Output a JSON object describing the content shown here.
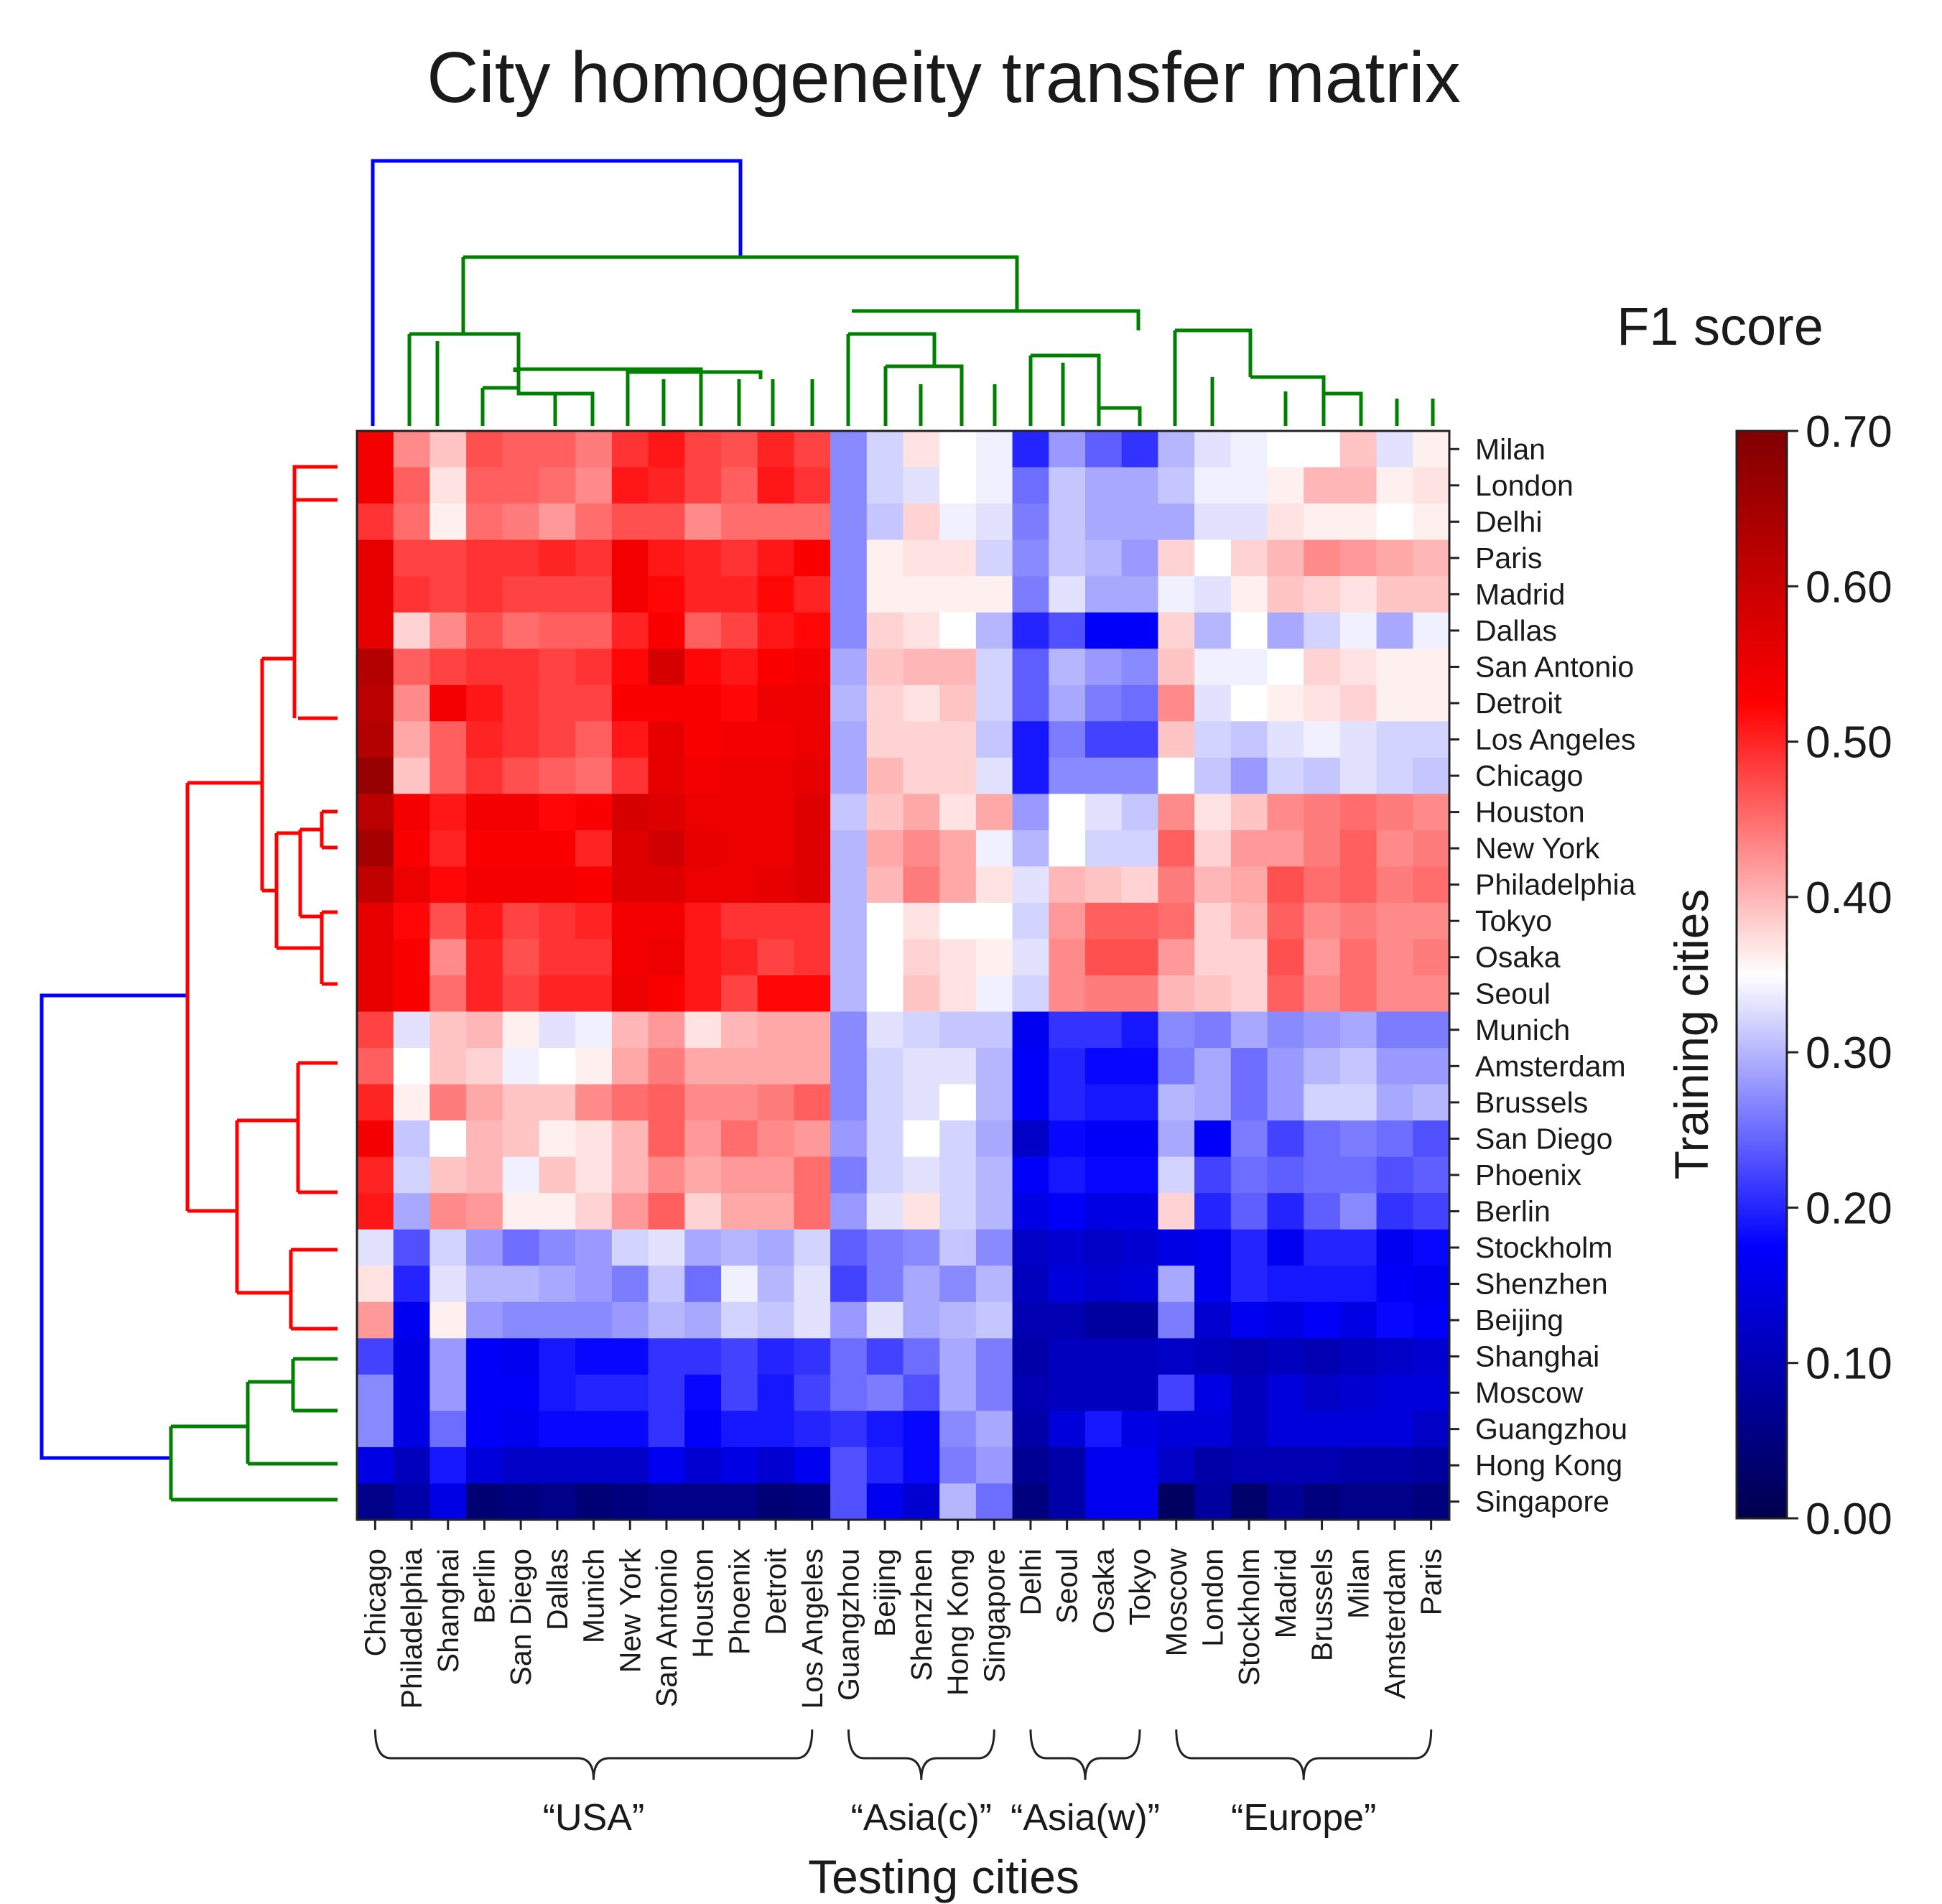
{
  "chart_data": {
    "type": "heatmap",
    "title": "City homogeneity transfer matrix",
    "xlabel": "Testing cities",
    "ylabel": "Training cities",
    "colorbar": {
      "title": "F1 score",
      "range": [
        0,
        0.7
      ],
      "ticks": [
        "0.00",
        "0.10",
        "0.20",
        "0.30",
        "0.40",
        "0.50",
        "0.60",
        "0.70"
      ],
      "colormap": "seismic"
    },
    "columns": [
      "Chicago",
      "Philadelphia",
      "Shanghai",
      "Berlin",
      "San Diego",
      "Dallas",
      "Munich",
      "New York",
      "San Antonio",
      "Houston",
      "Phoenix",
      "Detroit",
      "Los Angeles",
      "Guangzhou",
      "Beijing",
      "Shenzhen",
      "Hong Kong",
      "Singapore",
      "Delhi",
      "Seoul",
      "Osaka",
      "Tokyo",
      "Moscow",
      "London",
      "Stockholm",
      "Madrid",
      "Brussels",
      "Milan",
      "Amsterdam",
      "Paris"
    ],
    "rows": [
      "Milan",
      "London",
      "Delhi",
      "Paris",
      "Madrid",
      "Dallas",
      "San Antonio",
      "Detroit",
      "Los Angeles",
      "Chicago",
      "Houston",
      "New York",
      "Philadelphia",
      "Tokyo",
      "Osaka",
      "Seoul",
      "Munich",
      "Amsterdam",
      "Brussels",
      "San Diego",
      "Phoenix",
      "Berlin",
      "Stockholm",
      "Shenzhen",
      "Beijing",
      "Shanghai",
      "Moscow",
      "Guangzhou",
      "Hong Kong",
      "Singapore"
    ],
    "column_groups": [
      {
        "label": "“USA”",
        "from": 0,
        "to": 12
      },
      {
        "label": "“Asia(c)”",
        "from": 13,
        "to": 17
      },
      {
        "label": "“Asia(w)”",
        "from": 18,
        "to": 21
      },
      {
        "label": "“Europe”",
        "from": 22,
        "to": 29
      }
    ],
    "values": [
      [
        0.54,
        0.43,
        0.39,
        0.47,
        0.46,
        0.46,
        0.44,
        0.49,
        0.51,
        0.48,
        0.47,
        0.5,
        0.48,
        0.27,
        0.32,
        0.37,
        0.35,
        0.34,
        0.2,
        0.28,
        0.24,
        0.21,
        0.3,
        0.33,
        0.34,
        0.35,
        0.35,
        0.39,
        0.33,
        0.36
      ],
      [
        0.54,
        0.46,
        0.37,
        0.46,
        0.46,
        0.45,
        0.43,
        0.51,
        0.5,
        0.48,
        0.46,
        0.51,
        0.49,
        0.27,
        0.32,
        0.33,
        0.35,
        0.34,
        0.25,
        0.31,
        0.29,
        0.29,
        0.31,
        0.34,
        0.34,
        0.36,
        0.4,
        0.4,
        0.36,
        0.37
      ],
      [
        0.49,
        0.45,
        0.36,
        0.45,
        0.44,
        0.42,
        0.45,
        0.47,
        0.47,
        0.43,
        0.45,
        0.45,
        0.45,
        0.27,
        0.31,
        0.38,
        0.34,
        0.33,
        0.26,
        0.31,
        0.29,
        0.29,
        0.29,
        0.33,
        0.33,
        0.37,
        0.36,
        0.36,
        0.35,
        0.36
      ],
      [
        0.56,
        0.48,
        0.48,
        0.49,
        0.49,
        0.5,
        0.49,
        0.54,
        0.51,
        0.5,
        0.49,
        0.51,
        0.53,
        0.27,
        0.36,
        0.37,
        0.37,
        0.32,
        0.27,
        0.31,
        0.3,
        0.28,
        0.38,
        0.35,
        0.38,
        0.4,
        0.43,
        0.42,
        0.41,
        0.4
      ],
      [
        0.56,
        0.49,
        0.48,
        0.49,
        0.48,
        0.48,
        0.48,
        0.54,
        0.52,
        0.5,
        0.5,
        0.52,
        0.5,
        0.27,
        0.36,
        0.36,
        0.36,
        0.36,
        0.26,
        0.33,
        0.29,
        0.29,
        0.34,
        0.33,
        0.36,
        0.39,
        0.38,
        0.37,
        0.39,
        0.39
      ],
      [
        0.56,
        0.38,
        0.43,
        0.47,
        0.45,
        0.46,
        0.46,
        0.5,
        0.53,
        0.46,
        0.48,
        0.51,
        0.52,
        0.27,
        0.38,
        0.37,
        0.35,
        0.3,
        0.2,
        0.23,
        0.17,
        0.17,
        0.38,
        0.3,
        0.35,
        0.29,
        0.32,
        0.34,
        0.29,
        0.34
      ],
      [
        0.63,
        0.46,
        0.48,
        0.49,
        0.49,
        0.48,
        0.49,
        0.52,
        0.58,
        0.52,
        0.51,
        0.53,
        0.54,
        0.29,
        0.39,
        0.4,
        0.4,
        0.32,
        0.24,
        0.3,
        0.28,
        0.27,
        0.39,
        0.34,
        0.34,
        0.35,
        0.38,
        0.37,
        0.36,
        0.36
      ],
      [
        0.62,
        0.43,
        0.54,
        0.51,
        0.49,
        0.48,
        0.48,
        0.53,
        0.53,
        0.53,
        0.52,
        0.55,
        0.55,
        0.3,
        0.38,
        0.37,
        0.39,
        0.32,
        0.24,
        0.29,
        0.26,
        0.25,
        0.43,
        0.33,
        0.35,
        0.36,
        0.37,
        0.38,
        0.36,
        0.36
      ],
      [
        0.63,
        0.41,
        0.46,
        0.5,
        0.49,
        0.48,
        0.46,
        0.51,
        0.56,
        0.53,
        0.54,
        0.54,
        0.55,
        0.29,
        0.38,
        0.38,
        0.38,
        0.31,
        0.19,
        0.26,
        0.22,
        0.22,
        0.39,
        0.32,
        0.31,
        0.33,
        0.34,
        0.33,
        0.32,
        0.32
      ],
      [
        0.67,
        0.39,
        0.46,
        0.49,
        0.47,
        0.46,
        0.45,
        0.49,
        0.56,
        0.54,
        0.55,
        0.55,
        0.56,
        0.29,
        0.4,
        0.38,
        0.38,
        0.33,
        0.19,
        0.27,
        0.27,
        0.27,
        0.35,
        0.31,
        0.28,
        0.32,
        0.31,
        0.33,
        0.32,
        0.31
      ],
      [
        0.62,
        0.54,
        0.51,
        0.54,
        0.54,
        0.52,
        0.53,
        0.58,
        0.57,
        0.55,
        0.55,
        0.55,
        0.57,
        0.31,
        0.39,
        0.41,
        0.37,
        0.41,
        0.28,
        0.35,
        0.33,
        0.31,
        0.43,
        0.37,
        0.39,
        0.43,
        0.44,
        0.45,
        0.44,
        0.43
      ],
      [
        0.65,
        0.53,
        0.5,
        0.53,
        0.53,
        0.53,
        0.5,
        0.57,
        0.59,
        0.56,
        0.55,
        0.55,
        0.57,
        0.3,
        0.41,
        0.43,
        0.41,
        0.34,
        0.3,
        0.35,
        0.32,
        0.32,
        0.46,
        0.38,
        0.42,
        0.42,
        0.44,
        0.46,
        0.43,
        0.44
      ],
      [
        0.61,
        0.55,
        0.52,
        0.54,
        0.54,
        0.54,
        0.53,
        0.57,
        0.57,
        0.55,
        0.55,
        0.56,
        0.57,
        0.3,
        0.4,
        0.44,
        0.41,
        0.37,
        0.33,
        0.4,
        0.39,
        0.38,
        0.44,
        0.4,
        0.41,
        0.47,
        0.45,
        0.46,
        0.44,
        0.45
      ],
      [
        0.56,
        0.52,
        0.47,
        0.51,
        0.48,
        0.49,
        0.5,
        0.54,
        0.54,
        0.51,
        0.49,
        0.49,
        0.49,
        0.3,
        0.35,
        0.37,
        0.35,
        0.35,
        0.32,
        0.42,
        0.46,
        0.46,
        0.45,
        0.38,
        0.4,
        0.46,
        0.43,
        0.44,
        0.43,
        0.43
      ],
      [
        0.56,
        0.53,
        0.43,
        0.5,
        0.47,
        0.49,
        0.49,
        0.54,
        0.55,
        0.51,
        0.5,
        0.48,
        0.49,
        0.3,
        0.35,
        0.38,
        0.37,
        0.36,
        0.33,
        0.43,
        0.47,
        0.47,
        0.42,
        0.38,
        0.38,
        0.47,
        0.42,
        0.45,
        0.43,
        0.44
      ],
      [
        0.56,
        0.53,
        0.45,
        0.5,
        0.48,
        0.5,
        0.5,
        0.55,
        0.53,
        0.51,
        0.48,
        0.52,
        0.52,
        0.3,
        0.35,
        0.39,
        0.37,
        0.34,
        0.32,
        0.43,
        0.44,
        0.44,
        0.4,
        0.39,
        0.38,
        0.46,
        0.43,
        0.45,
        0.43,
        0.43
      ],
      [
        0.48,
        0.33,
        0.39,
        0.4,
        0.36,
        0.33,
        0.34,
        0.4,
        0.42,
        0.37,
        0.4,
        0.41,
        0.41,
        0.27,
        0.33,
        0.32,
        0.31,
        0.31,
        0.16,
        0.21,
        0.21,
        0.19,
        0.27,
        0.26,
        0.29,
        0.27,
        0.28,
        0.29,
        0.26,
        0.26
      ],
      [
        0.46,
        0.35,
        0.39,
        0.38,
        0.34,
        0.35,
        0.36,
        0.41,
        0.44,
        0.41,
        0.41,
        0.41,
        0.41,
        0.27,
        0.32,
        0.33,
        0.33,
        0.3,
        0.17,
        0.2,
        0.18,
        0.18,
        0.26,
        0.29,
        0.25,
        0.28,
        0.3,
        0.31,
        0.28,
        0.28
      ],
      [
        0.5,
        0.36,
        0.44,
        0.41,
        0.39,
        0.39,
        0.43,
        0.45,
        0.46,
        0.43,
        0.43,
        0.44,
        0.46,
        0.27,
        0.32,
        0.33,
        0.35,
        0.3,
        0.17,
        0.2,
        0.19,
        0.19,
        0.3,
        0.29,
        0.25,
        0.28,
        0.32,
        0.32,
        0.29,
        0.3
      ],
      [
        0.54,
        0.31,
        0.35,
        0.4,
        0.39,
        0.36,
        0.37,
        0.4,
        0.46,
        0.42,
        0.45,
        0.43,
        0.42,
        0.28,
        0.32,
        0.35,
        0.32,
        0.29,
        0.12,
        0.18,
        0.17,
        0.17,
        0.29,
        0.17,
        0.26,
        0.22,
        0.25,
        0.26,
        0.25,
        0.23
      ],
      [
        0.5,
        0.32,
        0.39,
        0.4,
        0.34,
        0.39,
        0.37,
        0.4,
        0.43,
        0.41,
        0.42,
        0.42,
        0.45,
        0.26,
        0.32,
        0.33,
        0.32,
        0.3,
        0.17,
        0.19,
        0.18,
        0.18,
        0.32,
        0.22,
        0.25,
        0.24,
        0.25,
        0.25,
        0.23,
        0.24
      ],
      [
        0.51,
        0.29,
        0.43,
        0.42,
        0.36,
        0.36,
        0.38,
        0.42,
        0.46,
        0.38,
        0.41,
        0.41,
        0.45,
        0.28,
        0.33,
        0.37,
        0.32,
        0.3,
        0.15,
        0.17,
        0.15,
        0.15,
        0.38,
        0.2,
        0.24,
        0.2,
        0.24,
        0.27,
        0.21,
        0.22
      ],
      [
        0.33,
        0.23,
        0.32,
        0.28,
        0.25,
        0.27,
        0.28,
        0.32,
        0.33,
        0.29,
        0.3,
        0.29,
        0.32,
        0.24,
        0.26,
        0.27,
        0.31,
        0.27,
        0.12,
        0.13,
        0.12,
        0.13,
        0.15,
        0.16,
        0.2,
        0.16,
        0.2,
        0.2,
        0.16,
        0.18
      ],
      [
        0.37,
        0.2,
        0.33,
        0.3,
        0.3,
        0.29,
        0.28,
        0.26,
        0.31,
        0.25,
        0.34,
        0.3,
        0.33,
        0.22,
        0.26,
        0.29,
        0.27,
        0.3,
        0.11,
        0.14,
        0.13,
        0.14,
        0.29,
        0.16,
        0.2,
        0.19,
        0.19,
        0.19,
        0.17,
        0.16
      ],
      [
        0.42,
        0.16,
        0.36,
        0.28,
        0.27,
        0.27,
        0.27,
        0.28,
        0.3,
        0.29,
        0.32,
        0.31,
        0.33,
        0.28,
        0.33,
        0.29,
        0.3,
        0.31,
        0.1,
        0.1,
        0.08,
        0.08,
        0.26,
        0.13,
        0.16,
        0.15,
        0.17,
        0.15,
        0.18,
        0.17
      ],
      [
        0.22,
        0.15,
        0.28,
        0.17,
        0.16,
        0.19,
        0.18,
        0.18,
        0.21,
        0.21,
        0.22,
        0.2,
        0.21,
        0.25,
        0.22,
        0.25,
        0.29,
        0.26,
        0.09,
        0.11,
        0.11,
        0.11,
        0.12,
        0.11,
        0.1,
        0.11,
        0.1,
        0.11,
        0.12,
        0.13
      ],
      [
        0.27,
        0.15,
        0.28,
        0.17,
        0.17,
        0.19,
        0.2,
        0.2,
        0.21,
        0.18,
        0.22,
        0.19,
        0.22,
        0.25,
        0.26,
        0.23,
        0.29,
        0.26,
        0.1,
        0.11,
        0.11,
        0.11,
        0.22,
        0.15,
        0.11,
        0.14,
        0.12,
        0.13,
        0.14,
        0.14
      ],
      [
        0.27,
        0.15,
        0.25,
        0.17,
        0.16,
        0.18,
        0.18,
        0.18,
        0.21,
        0.17,
        0.19,
        0.19,
        0.2,
        0.21,
        0.19,
        0.18,
        0.27,
        0.29,
        0.09,
        0.14,
        0.19,
        0.15,
        0.14,
        0.14,
        0.11,
        0.14,
        0.14,
        0.14,
        0.14,
        0.12
      ],
      [
        0.15,
        0.11,
        0.19,
        0.14,
        0.12,
        0.12,
        0.12,
        0.12,
        0.16,
        0.13,
        0.15,
        0.13,
        0.16,
        0.23,
        0.2,
        0.18,
        0.26,
        0.28,
        0.07,
        0.09,
        0.16,
        0.16,
        0.12,
        0.09,
        0.1,
        0.1,
        0.1,
        0.09,
        0.09,
        0.08
      ],
      [
        0.06,
        0.09,
        0.15,
        0.04,
        0.05,
        0.06,
        0.04,
        0.05,
        0.06,
        0.06,
        0.06,
        0.04,
        0.05,
        0.23,
        0.16,
        0.13,
        0.3,
        0.25,
        0.05,
        0.09,
        0.16,
        0.16,
        0.02,
        0.08,
        0.03,
        0.07,
        0.05,
        0.06,
        0.06,
        0.05
      ]
    ]
  }
}
